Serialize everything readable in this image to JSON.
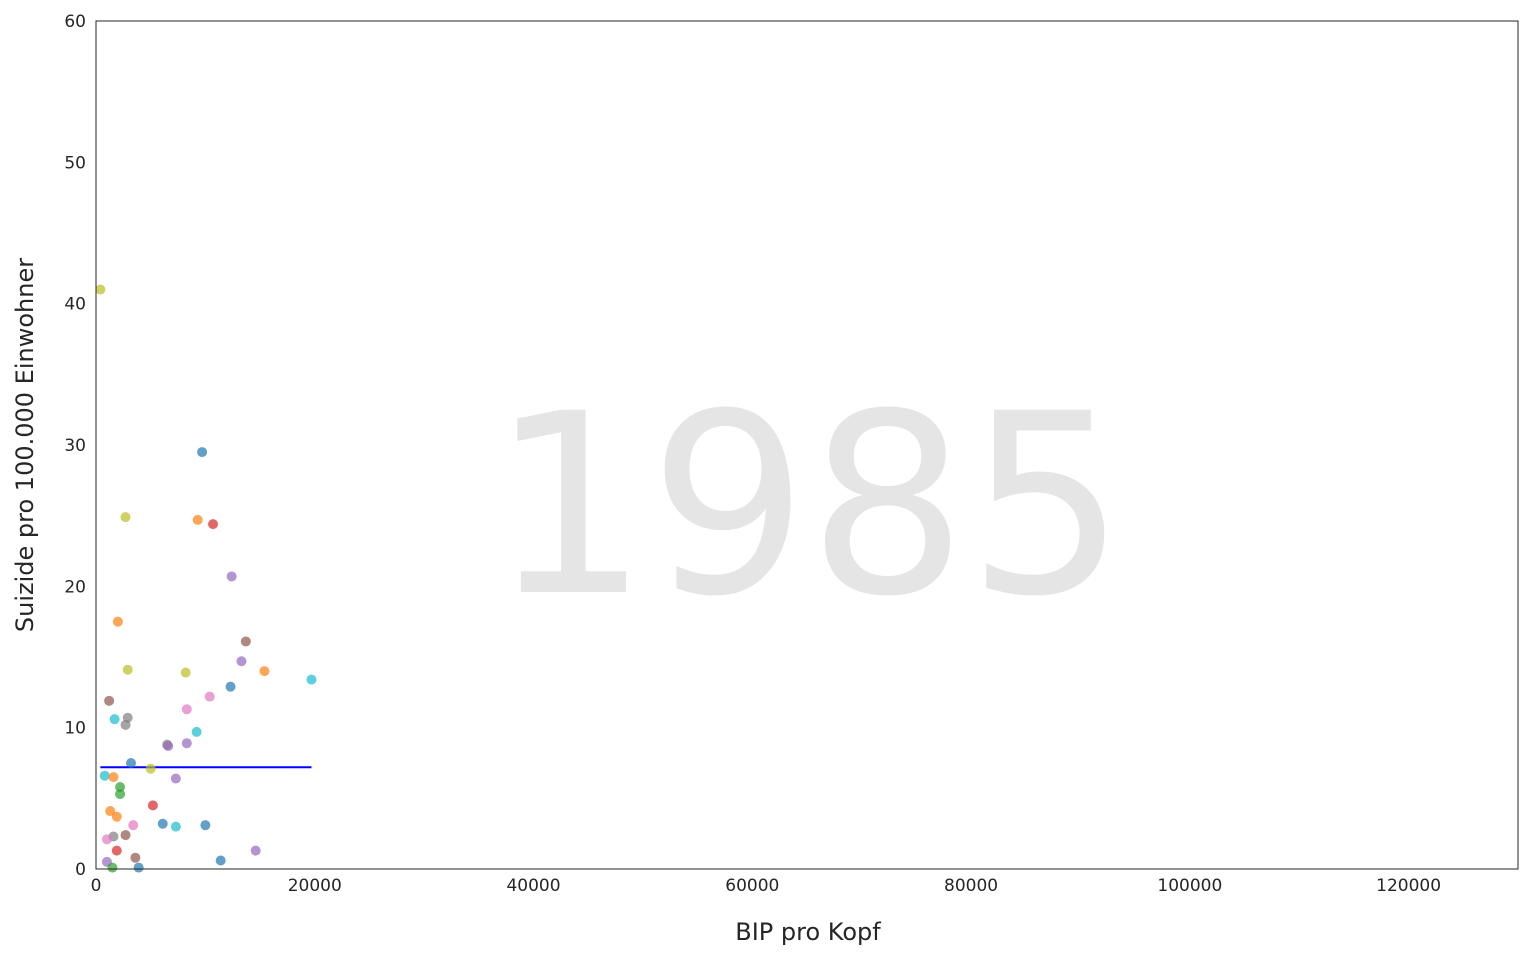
{
  "chart_data": {
    "type": "scatter",
    "title": "",
    "watermark": "1985",
    "xlabel": "BIP pro Kopf",
    "ylabel": "Suizide pro 100.000 Einwohner",
    "xlim": [
      0,
      130000
    ],
    "ylim": [
      0,
      60
    ],
    "xticks": [
      0,
      20000,
      40000,
      60000,
      80000,
      100000,
      120000
    ],
    "xtick_labels": [
      "0",
      "20000",
      "40000",
      "60000",
      "80000",
      "100000",
      "120000"
    ],
    "yticks": [
      0,
      10,
      20,
      30,
      40,
      50,
      60
    ],
    "ytick_labels": [
      "0",
      "10",
      "20",
      "30",
      "40",
      "50",
      "60"
    ],
    "grid": false,
    "point_opacity": 0.7,
    "trend_line": {
      "color": "#0000ff",
      "x": [
        400,
        19700
      ],
      "y": [
        7.2,
        7.2
      ]
    },
    "points": [
      {
        "x": 400,
        "y": 41.0,
        "color": "#bcbd22"
      },
      {
        "x": 9700,
        "y": 29.5,
        "color": "#1f77b4"
      },
      {
        "x": 2700,
        "y": 24.9,
        "color": "#bcbd22"
      },
      {
        "x": 9300,
        "y": 24.7,
        "color": "#ff7f0e"
      },
      {
        "x": 10700,
        "y": 24.4,
        "color": "#d62728"
      },
      {
        "x": 12400,
        "y": 20.7,
        "color": "#9467bd"
      },
      {
        "x": 2000,
        "y": 17.5,
        "color": "#ff7f0e"
      },
      {
        "x": 13700,
        "y": 16.1,
        "color": "#8c564b"
      },
      {
        "x": 13300,
        "y": 14.7,
        "color": "#9467bd"
      },
      {
        "x": 2900,
        "y": 14.1,
        "color": "#bcbd22"
      },
      {
        "x": 8200,
        "y": 13.9,
        "color": "#bcbd22"
      },
      {
        "x": 15400,
        "y": 14.0,
        "color": "#ff7f0e"
      },
      {
        "x": 19700,
        "y": 13.4,
        "color": "#17becf"
      },
      {
        "x": 12300,
        "y": 12.9,
        "color": "#1f77b4"
      },
      {
        "x": 10400,
        "y": 12.2,
        "color": "#e377c2"
      },
      {
        "x": 1200,
        "y": 11.9,
        "color": "#8c564b"
      },
      {
        "x": 8300,
        "y": 11.3,
        "color": "#e377c2"
      },
      {
        "x": 1700,
        "y": 10.6,
        "color": "#17becf"
      },
      {
        "x": 2900,
        "y": 10.7,
        "color": "#7f7f7f"
      },
      {
        "x": 2700,
        "y": 10.2,
        "color": "#7f7f7f"
      },
      {
        "x": 9200,
        "y": 9.7,
        "color": "#17becf"
      },
      {
        "x": 6500,
        "y": 8.8,
        "color": "#7f7f7f"
      },
      {
        "x": 6600,
        "y": 8.7,
        "color": "#9467bd"
      },
      {
        "x": 8300,
        "y": 8.9,
        "color": "#9467bd"
      },
      {
        "x": 3200,
        "y": 7.5,
        "color": "#1f77b4"
      },
      {
        "x": 5000,
        "y": 7.1,
        "color": "#bcbd22"
      },
      {
        "x": 800,
        "y": 6.6,
        "color": "#17becf"
      },
      {
        "x": 1600,
        "y": 6.5,
        "color": "#ff7f0e"
      },
      {
        "x": 7300,
        "y": 6.4,
        "color": "#9467bd"
      },
      {
        "x": 2200,
        "y": 5.8,
        "color": "#2ca02c"
      },
      {
        "x": 2200,
        "y": 5.3,
        "color": "#2ca02c"
      },
      {
        "x": 5200,
        "y": 4.5,
        "color": "#d62728"
      },
      {
        "x": 1300,
        "y": 4.1,
        "color": "#ff7f0e"
      },
      {
        "x": 1900,
        "y": 3.7,
        "color": "#ff7f0e"
      },
      {
        "x": 6100,
        "y": 3.2,
        "color": "#1f77b4"
      },
      {
        "x": 3400,
        "y": 3.1,
        "color": "#e377c2"
      },
      {
        "x": 7300,
        "y": 3.0,
        "color": "#17becf"
      },
      {
        "x": 10000,
        "y": 3.1,
        "color": "#1f77b4"
      },
      {
        "x": 1600,
        "y": 2.3,
        "color": "#7f7f7f"
      },
      {
        "x": 2700,
        "y": 2.4,
        "color": "#8c564b"
      },
      {
        "x": 1000,
        "y": 2.1,
        "color": "#e377c2"
      },
      {
        "x": 1900,
        "y": 1.3,
        "color": "#d62728"
      },
      {
        "x": 14600,
        "y": 1.3,
        "color": "#9467bd"
      },
      {
        "x": 3600,
        "y": 0.8,
        "color": "#8c564b"
      },
      {
        "x": 1000,
        "y": 0.5,
        "color": "#9467bd"
      },
      {
        "x": 11400,
        "y": 0.6,
        "color": "#1f77b4"
      },
      {
        "x": 1500,
        "y": 0.1,
        "color": "#2ca02c"
      },
      {
        "x": 3900,
        "y": 0.1,
        "color": "#1f77b4"
      }
    ]
  }
}
